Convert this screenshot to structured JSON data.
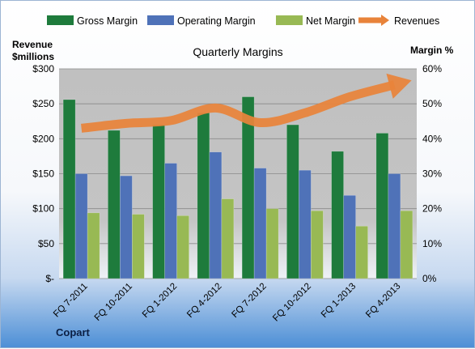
{
  "chart_data": {
    "type": "bar",
    "title": "Quarterly Margins",
    "ylabel_left": "Revenue\n$millions",
    "ylabel_right": "Margin %",
    "categories": [
      "FQ 7-2011",
      "FQ 10-2011",
      "FQ 1-2012",
      "FQ 4-2012",
      "FQ 7-2012",
      "FQ 10-2012",
      "FQ 1-2013",
      "FQ 4-2013"
    ],
    "left_axis": {
      "ylim": [
        0,
        300
      ],
      "ticks": [
        "$-",
        "$50",
        "$100",
        "$150",
        "$200",
        "$250",
        "$300"
      ]
    },
    "right_axis": {
      "ylim": [
        0,
        0.6
      ],
      "ticks": [
        "0%",
        "10%",
        "20%",
        "30%",
        "40%",
        "50%",
        "60%"
      ]
    },
    "series": [
      {
        "name": "Gross Margin",
        "axis": "right",
        "color": "#1e7b3c",
        "values": [
          0.512,
          0.424,
          0.44,
          0.474,
          0.52,
          0.44,
          0.364,
          0.416
        ]
      },
      {
        "name": "Operating Margin",
        "axis": "right",
        "color": "#4f72b8",
        "values": [
          0.3,
          0.294,
          0.33,
          0.362,
          0.316,
          0.31,
          0.238,
          0.3
        ]
      },
      {
        "name": "Net Margin",
        "axis": "right",
        "color": "#98b954",
        "values": [
          0.188,
          0.184,
          0.18,
          0.228,
          0.2,
          0.194,
          0.15,
          0.194
        ]
      },
      {
        "name": "Revenues",
        "axis": "left",
        "color": "#e8833a",
        "type": "line",
        "values": [
          215,
          222,
          226,
          244,
          223,
          237,
          260,
          277
        ]
      }
    ],
    "legend_position": "top",
    "plot_background": "#c0c0c0",
    "grid": true
  },
  "footer": {
    "company": "Copart"
  }
}
